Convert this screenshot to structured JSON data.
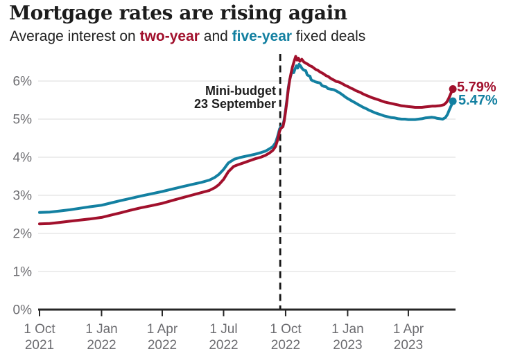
{
  "header": {
    "title": "Mortgage rates are rising again",
    "subtitle_prefix": "Average interest on ",
    "subtitle_two_year": "two-year",
    "subtitle_and": " and ",
    "subtitle_five_year": "five-year",
    "subtitle_suffix": " fixed deals"
  },
  "colors": {
    "two_year": "#a1102c",
    "five_year": "#1380a1",
    "grid": "#e2e2e2",
    "axis": "#262626",
    "tick_text": "#6c6c70",
    "event_line": "#141414"
  },
  "chart_data": {
    "type": "line",
    "title": "Mortgage rates are rising again",
    "subtitle": "Average interest on two-year and five-year fixed deals",
    "unit": "%",
    "ylim": [
      0,
      6.8
    ],
    "grid": "horizontal",
    "legend_position": "inline-subtitle",
    "y_ticks": [
      {
        "v": 0,
        "label": "0%"
      },
      {
        "v": 1,
        "label": "1%"
      },
      {
        "v": 2,
        "label": "2%"
      },
      {
        "v": 3,
        "label": "3%"
      },
      {
        "v": 4,
        "label": "4%"
      },
      {
        "v": 5,
        "label": "5%"
      },
      {
        "v": 6,
        "label": "6%"
      }
    ],
    "x_span_days": 617,
    "x_ticks": [
      {
        "day": 0,
        "line1": "1 Oct",
        "line2": "2021"
      },
      {
        "day": 92,
        "line1": "1 Jan",
        "line2": "2022"
      },
      {
        "day": 182,
        "line1": "1 Apr",
        "line2": "2022"
      },
      {
        "day": 273,
        "line1": "1 Jul",
        "line2": "2022"
      },
      {
        "day": 365,
        "line1": "1 Oct",
        "line2": "2022"
      },
      {
        "day": 457,
        "line1": "1 Jan",
        "line2": "2023"
      },
      {
        "day": 547,
        "line1": "1 Apr",
        "line2": "2023"
      }
    ],
    "event_line": {
      "day": 357,
      "label_line1": "Mini-budget",
      "label_line2": "23 September"
    },
    "series": [
      {
        "id": "two_year",
        "name": "two-year fixed",
        "end_label": "5.79%",
        "end_value": 5.79,
        "points": [
          [
            0,
            2.25
          ],
          [
            15,
            2.26
          ],
          [
            30,
            2.29
          ],
          [
            45,
            2.32
          ],
          [
            60,
            2.35
          ],
          [
            75,
            2.38
          ],
          [
            92,
            2.42
          ],
          [
            106,
            2.48
          ],
          [
            120,
            2.54
          ],
          [
            135,
            2.61
          ],
          [
            150,
            2.67
          ],
          [
            166,
            2.73
          ],
          [
            182,
            2.79
          ],
          [
            196,
            2.86
          ],
          [
            210,
            2.93
          ],
          [
            225,
            3.0
          ],
          [
            240,
            3.07
          ],
          [
            252,
            3.13
          ],
          [
            260,
            3.2
          ],
          [
            266,
            3.28
          ],
          [
            273,
            3.42
          ],
          [
            280,
            3.62
          ],
          [
            288,
            3.76
          ],
          [
            294,
            3.8
          ],
          [
            304,
            3.86
          ],
          [
            312,
            3.91
          ],
          [
            320,
            3.96
          ],
          [
            328,
            4.0
          ],
          [
            335,
            4.05
          ],
          [
            341,
            4.11
          ],
          [
            346,
            4.18
          ],
          [
            350,
            4.28
          ],
          [
            353,
            4.45
          ],
          [
            356,
            4.68
          ],
          [
            358,
            4.76
          ],
          [
            361,
            4.8
          ],
          [
            363,
            4.96
          ],
          [
            365,
            5.2
          ],
          [
            367,
            5.48
          ],
          [
            369,
            5.78
          ],
          [
            371,
            6.02
          ],
          [
            373,
            6.2
          ],
          [
            375,
            6.36
          ],
          [
            377,
            6.48
          ],
          [
            380,
            6.65
          ],
          [
            382,
            6.55
          ],
          [
            384,
            6.6
          ],
          [
            386,
            6.52
          ],
          [
            389,
            6.57
          ],
          [
            392,
            6.5
          ],
          [
            395,
            6.47
          ],
          [
            398,
            6.44
          ],
          [
            401,
            6.4
          ],
          [
            404,
            6.38
          ],
          [
            407,
            6.34
          ],
          [
            410,
            6.3
          ],
          [
            413,
            6.28
          ],
          [
            416,
            6.24
          ],
          [
            419,
            6.21
          ],
          [
            422,
            6.18
          ],
          [
            425,
            6.14
          ],
          [
            428,
            6.12
          ],
          [
            431,
            6.08
          ],
          [
            434,
            6.05
          ],
          [
            437,
            6.02
          ],
          [
            440,
            5.99
          ],
          [
            443,
            5.98
          ],
          [
            446,
            5.96
          ],
          [
            450,
            5.92
          ],
          [
            454,
            5.88
          ],
          [
            457,
            5.86
          ],
          [
            461,
            5.82
          ],
          [
            465,
            5.79
          ],
          [
            469,
            5.75
          ],
          [
            473,
            5.72
          ],
          [
            476,
            5.7
          ],
          [
            480,
            5.66
          ],
          [
            484,
            5.63
          ],
          [
            488,
            5.6
          ],
          [
            492,
            5.57
          ],
          [
            497,
            5.54
          ],
          [
            502,
            5.51
          ],
          [
            507,
            5.48
          ],
          [
            512,
            5.45
          ],
          [
            517,
            5.43
          ],
          [
            522,
            5.41
          ],
          [
            527,
            5.39
          ],
          [
            532,
            5.37
          ],
          [
            537,
            5.35
          ],
          [
            542,
            5.34
          ],
          [
            547,
            5.33
          ],
          [
            552,
            5.32
          ],
          [
            557,
            5.31
          ],
          [
            562,
            5.31
          ],
          [
            567,
            5.31
          ],
          [
            572,
            5.32
          ],
          [
            577,
            5.33
          ],
          [
            582,
            5.34
          ],
          [
            587,
            5.34
          ],
          [
            592,
            5.35
          ],
          [
            596,
            5.36
          ],
          [
            600,
            5.38
          ],
          [
            604,
            5.45
          ],
          [
            607,
            5.55
          ],
          [
            610,
            5.67
          ],
          [
            613,
            5.79
          ]
        ]
      },
      {
        "id": "five_year",
        "name": "five-year fixed",
        "end_label": "5.47%",
        "end_value": 5.47,
        "points": [
          [
            0,
            2.55
          ],
          [
            15,
            2.56
          ],
          [
            30,
            2.59
          ],
          [
            45,
            2.62
          ],
          [
            60,
            2.66
          ],
          [
            75,
            2.7
          ],
          [
            92,
            2.74
          ],
          [
            106,
            2.8
          ],
          [
            120,
            2.86
          ],
          [
            135,
            2.92
          ],
          [
            150,
            2.98
          ],
          [
            166,
            3.04
          ],
          [
            182,
            3.1
          ],
          [
            196,
            3.16
          ],
          [
            210,
            3.22
          ],
          [
            225,
            3.28
          ],
          [
            240,
            3.34
          ],
          [
            252,
            3.4
          ],
          [
            260,
            3.47
          ],
          [
            266,
            3.55
          ],
          [
            273,
            3.68
          ],
          [
            280,
            3.85
          ],
          [
            289,
            3.95
          ],
          [
            297,
            3.99
          ],
          [
            304,
            4.02
          ],
          [
            312,
            4.05
          ],
          [
            320,
            4.08
          ],
          [
            328,
            4.12
          ],
          [
            335,
            4.16
          ],
          [
            341,
            4.22
          ],
          [
            346,
            4.28
          ],
          [
            350,
            4.38
          ],
          [
            353,
            4.54
          ],
          [
            356,
            4.74
          ],
          [
            358,
            4.8
          ],
          [
            361,
            4.84
          ],
          [
            363,
            5.0
          ],
          [
            365,
            5.24
          ],
          [
            367,
            5.52
          ],
          [
            369,
            5.82
          ],
          [
            371,
            6.04
          ],
          [
            373,
            6.16
          ],
          [
            375,
            6.28
          ],
          [
            377,
            6.22
          ],
          [
            379,
            6.32
          ],
          [
            381,
            6.4
          ],
          [
            383,
            6.34
          ],
          [
            385,
            6.44
          ],
          [
            387,
            6.4
          ],
          [
            389,
            6.34
          ],
          [
            391,
            6.3
          ],
          [
            393,
            6.28
          ],
          [
            395,
            6.27
          ],
          [
            397,
            6.16
          ],
          [
            399,
            6.14
          ],
          [
            401,
            6.13
          ],
          [
            403,
            6.03
          ],
          [
            405,
            6.01
          ],
          [
            407,
            6.0
          ],
          [
            409,
            5.98
          ],
          [
            411,
            5.97
          ],
          [
            413,
            5.96
          ],
          [
            416,
            5.95
          ],
          [
            419,
            5.88
          ],
          [
            422,
            5.86
          ],
          [
            425,
            5.85
          ],
          [
            428,
            5.8
          ],
          [
            431,
            5.79
          ],
          [
            434,
            5.78
          ],
          [
            437,
            5.77
          ],
          [
            440,
            5.74
          ],
          [
            443,
            5.71
          ],
          [
            446,
            5.68
          ],
          [
            450,
            5.63
          ],
          [
            453,
            5.59
          ],
          [
            457,
            5.54
          ],
          [
            460,
            5.51
          ],
          [
            463,
            5.48
          ],
          [
            466,
            5.45
          ],
          [
            469,
            5.42
          ],
          [
            472,
            5.39
          ],
          [
            476,
            5.35
          ],
          [
            480,
            5.31
          ],
          [
            484,
            5.28
          ],
          [
            488,
            5.24
          ],
          [
            492,
            5.21
          ],
          [
            497,
            5.17
          ],
          [
            502,
            5.14
          ],
          [
            507,
            5.11
          ],
          [
            512,
            5.08
          ],
          [
            517,
            5.06
          ],
          [
            522,
            5.04
          ],
          [
            527,
            5.03
          ],
          [
            532,
            5.01
          ],
          [
            537,
            5.0
          ],
          [
            542,
            5.0
          ],
          [
            547,
            4.99
          ],
          [
            552,
            4.99
          ],
          [
            557,
            4.99
          ],
          [
            562,
            5.0
          ],
          [
            567,
            5.01
          ],
          [
            572,
            5.03
          ],
          [
            577,
            5.04
          ],
          [
            582,
            5.05
          ],
          [
            586,
            5.04
          ],
          [
            590,
            5.02
          ],
          [
            594,
            5.01
          ],
          [
            598,
            5.0
          ],
          [
            602,
            5.04
          ],
          [
            605,
            5.12
          ],
          [
            608,
            5.25
          ],
          [
            611,
            5.37
          ],
          [
            613,
            5.47
          ]
        ]
      }
    ]
  }
}
